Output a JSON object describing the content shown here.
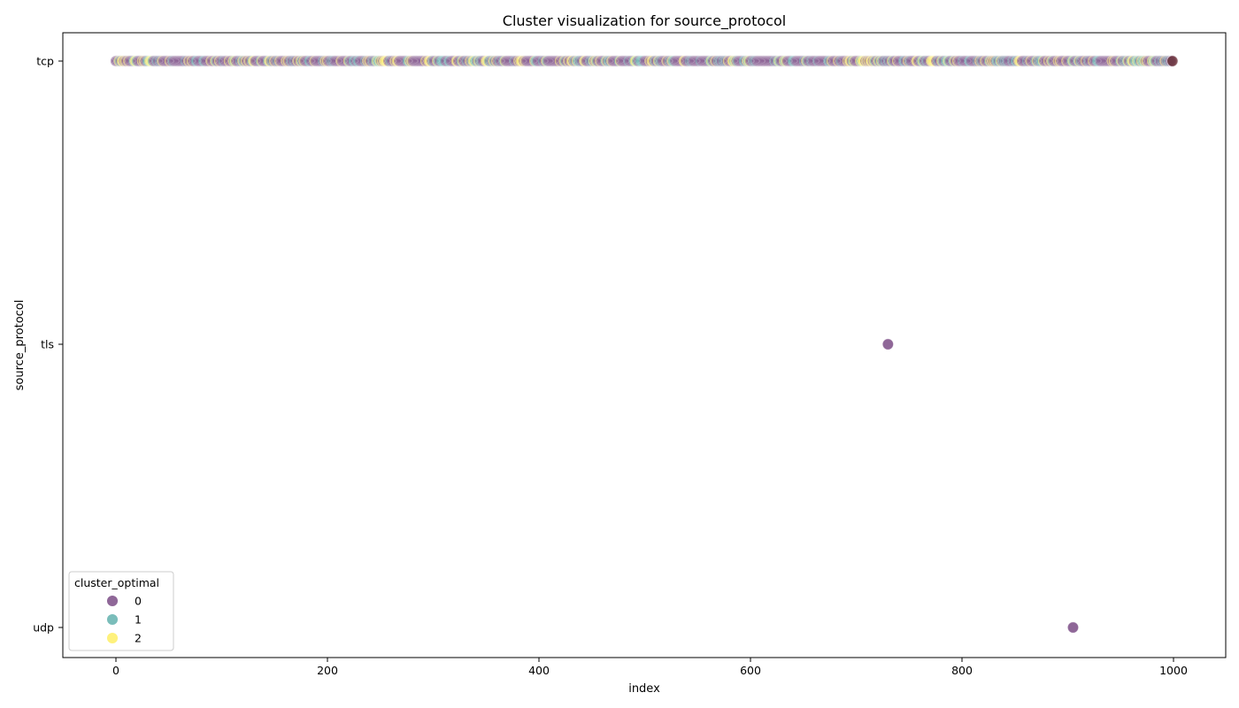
{
  "chart_data": {
    "type": "scatter",
    "title": "Cluster visualization for source_protocol",
    "xlabel": "index",
    "ylabel": "source_protocol",
    "xlim": [
      -50,
      1050
    ],
    "xticks": [
      0,
      200,
      400,
      600,
      800,
      1000
    ],
    "y_categories": [
      "tcp",
      "tls",
      "udp"
    ],
    "legend": {
      "title": "cluster_optimal",
      "placement": "lower-left",
      "entries": [
        {
          "label": "0",
          "color": "#440154"
        },
        {
          "label": "1",
          "color": "#21918c"
        },
        {
          "label": "2",
          "color": "#fde725"
        }
      ]
    },
    "marker_alpha": 0.6,
    "points_summary": {
      "tcp_index_range": [
        0,
        999
      ],
      "tcp_cluster_mix": "mostly 0, with 1 and 2 interspersed"
    },
    "series": [
      {
        "name": "0",
        "points": [
          {
            "x": 730,
            "y": "tls"
          },
          {
            "x": 905,
            "y": "udp"
          },
          {
            "x": 999,
            "y": "tcp"
          }
        ]
      }
    ]
  }
}
